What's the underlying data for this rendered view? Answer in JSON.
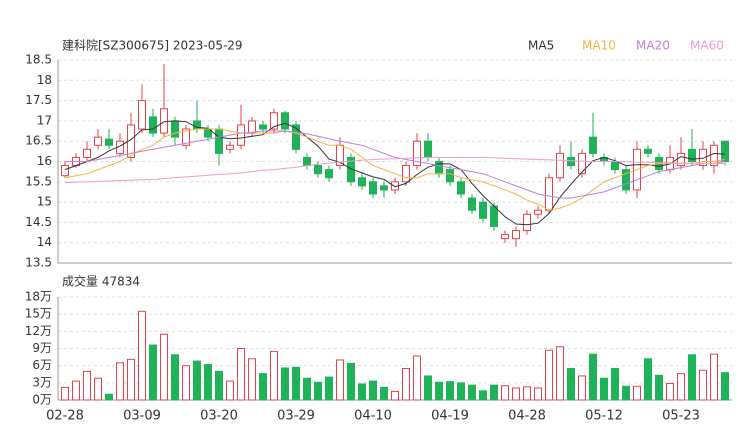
{
  "chart_data": [
    {
      "type": "candlestick",
      "title": "建科院[SZ300675] 2023-05-29",
      "ylim": [
        13.5,
        18.5
      ],
      "yticks": [
        13.5,
        14,
        14.5,
        15,
        15.5,
        16,
        16.5,
        17,
        17.5,
        18,
        18.5
      ],
      "grid": true,
      "up_color": "#e8414b",
      "down_color": "#1fb259",
      "legend": "top-right",
      "open": [
        15.65,
        15.9,
        16.1,
        16.4,
        16.55,
        16.2,
        16.1,
        16.8,
        17.1,
        16.7,
        17.0,
        16.4,
        17.0,
        16.8,
        16.8,
        16.3,
        16.4,
        16.7,
        16.9,
        16.8,
        17.2,
        16.9,
        16.1,
        15.9,
        15.8,
        15.9,
        16.1,
        15.6,
        15.5,
        15.4,
        15.3,
        15.5,
        15.9,
        16.5,
        16.0,
        15.8,
        15.5,
        15.1,
        15.0,
        14.9,
        14.1,
        14.1,
        14.3,
        14.7,
        14.8,
        15.6,
        16.1,
        15.7,
        16.6,
        16.1,
        16.0,
        15.8,
        15.3,
        16.3,
        16.1,
        15.8,
        15.9,
        16.3,
        15.9,
        15.9,
        16.5
      ],
      "high": [
        16.0,
        16.2,
        16.5,
        16.8,
        16.8,
        16.7,
        17.2,
        17.9,
        17.3,
        18.4,
        17.1,
        16.9,
        17.5,
        16.9,
        16.9,
        16.5,
        17.4,
        17.1,
        17.0,
        17.3,
        17.25,
        17.0,
        16.2,
        16.0,
        15.9,
        16.6,
        16.2,
        15.7,
        15.6,
        15.5,
        15.6,
        16.0,
        16.7,
        16.7,
        16.1,
        15.9,
        15.6,
        15.2,
        15.1,
        15.0,
        14.3,
        14.4,
        14.8,
        14.9,
        15.7,
        16.4,
        16.5,
        16.3,
        17.2,
        16.2,
        16.1,
        15.9,
        16.5,
        16.4,
        16.2,
        16.4,
        16.6,
        16.8,
        16.5,
        16.5,
        16.5
      ],
      "low": [
        15.6,
        15.85,
        16.0,
        16.3,
        16.3,
        16.1,
        16.0,
        16.7,
        16.6,
        16.6,
        16.4,
        16.3,
        16.7,
        16.5,
        15.9,
        16.2,
        16.3,
        16.6,
        16.7,
        16.7,
        16.7,
        16.2,
        15.8,
        15.6,
        15.5,
        15.8,
        15.4,
        15.3,
        15.1,
        15.1,
        15.2,
        15.4,
        15.8,
        16.0,
        15.6,
        15.4,
        15.1,
        14.7,
        14.5,
        14.3,
        14.0,
        13.9,
        14.2,
        14.6,
        14.7,
        15.5,
        15.8,
        15.6,
        16.1,
        15.9,
        15.7,
        15.2,
        15.1,
        16.1,
        15.7,
        15.7,
        15.8,
        15.9,
        15.8,
        15.7,
        15.9
      ],
      "close": [
        15.9,
        16.1,
        16.3,
        16.6,
        16.4,
        16.5,
        16.9,
        17.5,
        16.7,
        17.3,
        16.6,
        16.8,
        16.8,
        16.6,
        16.2,
        16.4,
        16.9,
        17.0,
        16.8,
        17.2,
        16.8,
        16.3,
        15.9,
        15.7,
        15.6,
        16.4,
        15.5,
        15.4,
        15.2,
        15.3,
        15.5,
        15.9,
        16.5,
        16.1,
        15.7,
        15.5,
        15.2,
        14.8,
        14.6,
        14.4,
        14.2,
        14.3,
        14.7,
        14.8,
        15.6,
        16.2,
        15.9,
        16.2,
        16.2,
        16.0,
        15.8,
        15.3,
        16.3,
        16.2,
        15.8,
        16.1,
        16.2,
        16.0,
        16.3,
        16.4,
        16.0
      ],
      "series": [
        {
          "name": "MA5",
          "color": "#333333",
          "values": [
            15.8,
            15.9,
            16.0,
            16.1,
            16.26,
            16.38,
            16.54,
            16.78,
            16.8,
            16.98,
            17.0,
            16.98,
            16.84,
            16.82,
            16.6,
            16.56,
            16.58,
            16.62,
            16.66,
            16.86,
            16.94,
            16.82,
            16.6,
            16.38,
            16.06,
            15.98,
            15.82,
            15.72,
            15.62,
            15.56,
            15.38,
            15.46,
            15.68,
            15.86,
            15.94,
            15.94,
            15.8,
            15.46,
            15.16,
            14.9,
            14.64,
            14.46,
            14.44,
            14.48,
            14.72,
            15.12,
            15.44,
            15.74,
            16.02,
            16.1,
            16.02,
            15.9,
            15.92,
            15.92,
            15.88,
            15.94,
            16.12,
            16.06,
            16.08,
            16.2,
            16.18
          ]
        },
        {
          "name": "MA10",
          "color": "#f5b342",
          "values": [
            15.6,
            15.65,
            15.7,
            15.8,
            15.9,
            16.0,
            16.15,
            16.3,
            16.4,
            16.6,
            16.7,
            16.75,
            16.8,
            16.8,
            16.8,
            16.75,
            16.7,
            16.7,
            16.7,
            16.7,
            16.75,
            16.7,
            16.6,
            16.5,
            16.4,
            16.4,
            16.3,
            16.1,
            15.9,
            15.8,
            15.7,
            15.6,
            15.6,
            15.7,
            15.7,
            15.7,
            15.6,
            15.55,
            15.5,
            15.4,
            15.3,
            15.2,
            15.05,
            14.95,
            14.8,
            14.85,
            14.95,
            15.1,
            15.3,
            15.5,
            15.6,
            15.7,
            15.8,
            15.9,
            15.95,
            15.95,
            15.95,
            15.95,
            16.0,
            16.0,
            16.05
          ]
        },
        {
          "name": "MA20",
          "color": "#c07fd8",
          "values": [
            16.0,
            16.0,
            16.0,
            16.05,
            16.1,
            16.15,
            16.2,
            16.25,
            16.3,
            16.35,
            16.4,
            16.45,
            16.5,
            16.55,
            16.6,
            16.65,
            16.7,
            16.72,
            16.75,
            16.75,
            16.75,
            16.72,
            16.68,
            16.62,
            16.56,
            16.5,
            16.45,
            16.4,
            16.3,
            16.2,
            16.1,
            16.05,
            16.0,
            15.95,
            15.9,
            15.85,
            15.8,
            15.75,
            15.7,
            15.6,
            15.5,
            15.4,
            15.3,
            15.2,
            15.15,
            15.1,
            15.1,
            15.15,
            15.2,
            15.25,
            15.35,
            15.45,
            15.55,
            15.65,
            15.75,
            15.8,
            15.85,
            15.9,
            15.95,
            15.95,
            16.0
          ]
        },
        {
          "name": "MA60",
          "color": "#f29bcb",
          "values": [
            15.48,
            15.49,
            15.5,
            15.51,
            15.52,
            15.53,
            15.54,
            15.55,
            15.56,
            15.58,
            15.6,
            15.62,
            15.64,
            15.66,
            15.68,
            15.7,
            15.72,
            15.75,
            15.78,
            15.8,
            15.83,
            15.86,
            15.9,
            15.93,
            15.96,
            15.99,
            16.01,
            16.03,
            16.05,
            16.06,
            16.07,
            16.08,
            16.09,
            16.1,
            16.1,
            16.1,
            16.1,
            16.1,
            16.1,
            16.09,
            16.08,
            16.07,
            16.06,
            16.05,
            16.04,
            16.03,
            16.02,
            16.01,
            16.0,
            16.0,
            16.0,
            15.99,
            15.98,
            15.98,
            15.97,
            15.97,
            15.96,
            15.96,
            15.95,
            15.95,
            15.95
          ]
        }
      ]
    },
    {
      "type": "bar",
      "title": "成交量 47834",
      "ylim": [
        0,
        18
      ],
      "grid": true,
      "yticks": [
        {
          "value": 0,
          "label": "0万"
        },
        {
          "value": 3,
          "label": "3万"
        },
        {
          "value": 6,
          "label": "6万"
        },
        {
          "value": 9,
          "label": "9万"
        },
        {
          "value": 12,
          "label": "12万"
        },
        {
          "value": 15,
          "label": "15万"
        },
        {
          "value": 18,
          "label": "18万"
        }
      ],
      "categories": [
        "02-28",
        null,
        null,
        null,
        null,
        null,
        null,
        "03-09",
        null,
        null,
        null,
        null,
        null,
        null,
        "03-20",
        null,
        null,
        null,
        null,
        null,
        null,
        "03-29",
        null,
        null,
        null,
        null,
        null,
        null,
        "04-10",
        null,
        null,
        null,
        null,
        null,
        null,
        "04-19",
        null,
        null,
        null,
        null,
        null,
        null,
        "04-28",
        null,
        null,
        null,
        null,
        null,
        null,
        "05-12",
        null,
        null,
        null,
        null,
        null,
        null,
        "05-23",
        null,
        null,
        null,
        null
      ],
      "values": [
        2.2,
        3.3,
        5.0,
        3.8,
        1.0,
        6.5,
        7.1,
        15.5,
        9.6,
        11.5,
        7.9,
        6.0,
        6.8,
        6.2,
        5.0,
        3.3,
        9.0,
        7.2,
        4.6,
        8.5,
        5.6,
        5.7,
        3.8,
        3.1,
        4.0,
        7.0,
        6.4,
        2.8,
        3.3,
        2.2,
        1.5,
        5.5,
        7.7,
        4.2,
        3.1,
        3.2,
        3.0,
        2.6,
        1.6,
        2.6,
        2.5,
        2.1,
        2.3,
        2.1,
        8.7,
        9.3,
        5.5,
        4.2,
        8.0,
        3.8,
        5.5,
        2.4,
        2.4,
        7.2,
        4.3,
        2.9,
        4.6,
        7.9,
        5.2,
        8.0,
        4.7834
      ]
    }
  ]
}
